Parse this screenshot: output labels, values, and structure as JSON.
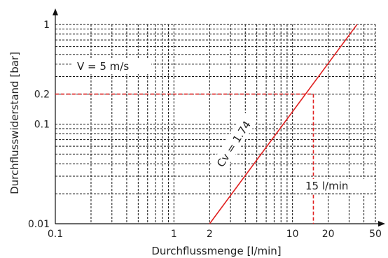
{
  "chart_data": {
    "type": "line",
    "title": "",
    "xlabel": "Durchflussmenge [l/min]",
    "ylabel": "Durchflusswiderstand [bar]",
    "xscale": "log",
    "yscale": "log",
    "xlim": [
      0.1,
      50
    ],
    "ylim": [
      0.01,
      1
    ],
    "grid": true,
    "x_ticks": [
      {
        "value": 0.1,
        "label": "0.1"
      },
      {
        "value": 1,
        "label": "1"
      },
      {
        "value": 2,
        "label": "2"
      },
      {
        "value": 10,
        "label": "10"
      },
      {
        "value": 20,
        "label": "20"
      },
      {
        "value": 50,
        "label": "50"
      }
    ],
    "y_ticks": [
      {
        "value": 0.01,
        "label": "0.01"
      },
      {
        "value": 0.1,
        "label": "0.1"
      },
      {
        "value": 0.2,
        "label": "0.2"
      },
      {
        "value": 1,
        "label": "1"
      }
    ],
    "series": [
      {
        "name": "Cv = 1.74",
        "color": "#e02020",
        "x": [
          2,
          35
        ],
        "y": [
          0.01,
          1
        ]
      }
    ],
    "reference": {
      "x": 15,
      "y": 0.2,
      "color": "#e02020",
      "label": "15 l/min"
    },
    "annotations": {
      "velocity": "V = 5 m/s",
      "cv": "Cv = 1.74"
    }
  }
}
